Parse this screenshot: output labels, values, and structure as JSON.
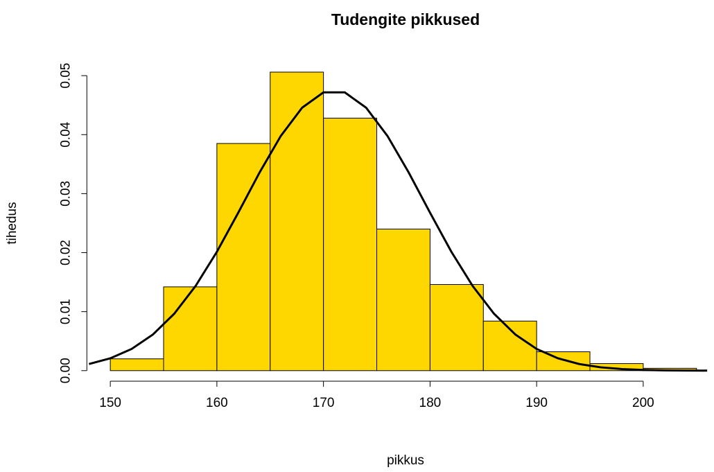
{
  "chart_data": {
    "type": "histogram",
    "title": "Tudengite pikkused",
    "xlabel": "pikkus",
    "ylabel": "tihedus",
    "bins": [
      150,
      155,
      160,
      165,
      170,
      175,
      180,
      185,
      190,
      195,
      200,
      205
    ],
    "values": [
      0.002,
      0.0142,
      0.0385,
      0.0506,
      0.0428,
      0.024,
      0.0146,
      0.0084,
      0.0032,
      0.0012,
      0.0004
    ],
    "color": "#ffd700",
    "curve": {
      "color": "#000000",
      "x": [
        148,
        150,
        152,
        154,
        156,
        158,
        160,
        162,
        164,
        166,
        168,
        170,
        172,
        174,
        176,
        178,
        180,
        182,
        184,
        186,
        188,
        190,
        192,
        194,
        196,
        198,
        200,
        202,
        204,
        206
      ],
      "values": [
        0.00112,
        0.00209,
        0.00368,
        0.00613,
        0.00965,
        0.01434,
        0.02015,
        0.02676,
        0.03357,
        0.03979,
        0.04457,
        0.04716,
        0.04716,
        0.04457,
        0.03979,
        0.03357,
        0.02676,
        0.02015,
        0.01434,
        0.00965,
        0.00613,
        0.00368,
        0.00209,
        0.00112,
        0.000567,
        0.000271,
        0.000123,
        5.2e-05,
        2.1e-05,
        8e-06
      ]
    },
    "xlim": [
      147.8,
      207.2
    ],
    "ylim": [
      -0.002024,
      0.0526
    ],
    "xticks": [
      150,
      160,
      170,
      180,
      190,
      200
    ],
    "yticks": [
      {
        "value": 0,
        "label": "0.00"
      },
      0.01,
      0.02,
      0.03,
      0.04,
      0.05
    ]
  }
}
